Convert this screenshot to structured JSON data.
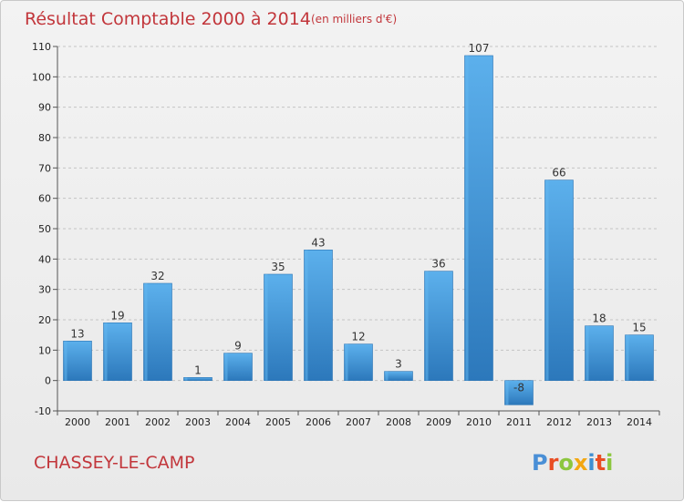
{
  "chart_data": {
    "type": "bar",
    "title": "Résultat Comptable 2000 à 2014",
    "subtitle": "(en milliers d'€)",
    "categories": [
      "2000",
      "2001",
      "2002",
      "2003",
      "2004",
      "2005",
      "2006",
      "2007",
      "2008",
      "2009",
      "2010",
      "2011",
      "2012",
      "2013",
      "2014"
    ],
    "values": [
      13,
      19,
      32,
      1,
      9,
      35,
      43,
      12,
      3,
      36,
      107,
      -8,
      66,
      18,
      15
    ],
    "ylim": [
      -10,
      110
    ],
    "yticks": [
      -10,
      0,
      10,
      20,
      30,
      40,
      50,
      60,
      70,
      80,
      90,
      100,
      110
    ],
    "grid": true,
    "bar_color": "#3d93d9",
    "bar_color_dark": "#2a74b5",
    "bar_color_light": "#62b6ee"
  },
  "commune": "CHASSEY-LE-CAMP",
  "logo": {
    "letters": [
      "P",
      "r",
      "o",
      "x",
      "i",
      "t",
      "i"
    ],
    "colors": [
      "#4a8fd6",
      "#e94e24",
      "#8cc63e",
      "#f3a712",
      "#3f8fd2",
      "#e94e24",
      "#8cc63e"
    ]
  }
}
